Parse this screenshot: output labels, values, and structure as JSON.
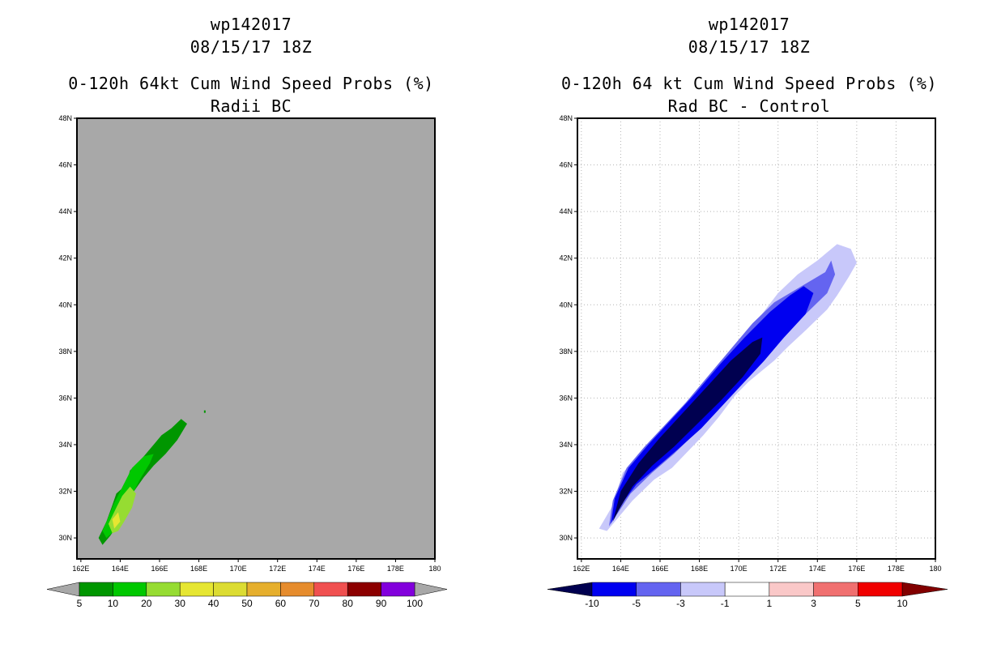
{
  "left": {
    "title1": "wp142017",
    "title2": "08/15/17 18Z",
    "title3": "0-120h 64kt Cum Wind Speed Probs (%)",
    "title4": "Radii BC"
  },
  "right": {
    "title1": "wp142017",
    "title2": "08/15/17 18Z",
    "title3": "0-120h 64 kt Cum Wind Speed Probs (%)",
    "title4": "Rad BC - Control"
  },
  "colors": {
    "left_background": "#a8a8a8",
    "green_dark": "#009600",
    "green": "#00c800",
    "green_light": "#96dc32",
    "yellow": "#e6e632",
    "navy": "#000050",
    "blue": "#0000f0",
    "blue_mid": "#6464f0",
    "blue_light": "#c8c8fa"
  },
  "chart_data": [
    {
      "type": "contour-map",
      "panel": "left",
      "title": "0-120h 64kt Cum Wind Speed Probs (%)",
      "subtitle": "Radii BC",
      "x_ticks": [
        "162E",
        "164E",
        "166E",
        "168E",
        "170E",
        "172E",
        "174E",
        "176E",
        "178E",
        "180"
      ],
      "y_ticks": [
        "30N",
        "32N",
        "34N",
        "36N",
        "38N",
        "40N",
        "42N",
        "44N",
        "46N",
        "48N"
      ],
      "xlim": [
        161.8,
        180
      ],
      "ylim": [
        29.1,
        48
      ],
      "grid": false,
      "legend_levels": [
        "5",
        "10",
        "20",
        "30",
        "40",
        "50",
        "60",
        "70",
        "80",
        "90",
        "100"
      ],
      "legend_colors": [
        "#009600",
        "#00c800",
        "#96dc32",
        "#e6e632",
        "#dcdc32",
        "#e6af2d",
        "#e68c2d",
        "#f05050",
        "#8c0000",
        "#8200dc"
      ],
      "contours": [
        {
          "level": 5,
          "color": "#009600",
          "points": [
            [
              163.1,
              29.7
            ],
            [
              162.9,
              30.0
            ],
            [
              163.3,
              30.7
            ],
            [
              163.6,
              31.4
            ],
            [
              163.8,
              31.9
            ],
            [
              164.2,
              32.2
            ],
            [
              164.4,
              32.6
            ],
            [
              164.5,
              32.9
            ],
            [
              164.9,
              33.2
            ],
            [
              165.4,
              33.7
            ],
            [
              165.8,
              34.1
            ],
            [
              166.1,
              34.4
            ],
            [
              166.6,
              34.7
            ],
            [
              167.1,
              35.1
            ],
            [
              167.4,
              34.9
            ],
            [
              166.9,
              34.2
            ],
            [
              166.3,
              33.6
            ],
            [
              165.7,
              33.1
            ],
            [
              165.2,
              32.6
            ],
            [
              164.7,
              32.0
            ],
            [
              164.3,
              31.3
            ],
            [
              163.9,
              30.6
            ],
            [
              163.5,
              30.1
            ]
          ]
        },
        {
          "level": 10,
          "color": "#00c800",
          "points": [
            [
              163.3,
              30.0
            ],
            [
              163.1,
              30.3
            ],
            [
              163.4,
              30.9
            ],
            [
              163.7,
              31.5
            ],
            [
              164.0,
              32.0
            ],
            [
              164.3,
              32.5
            ],
            [
              164.6,
              33.0
            ],
            [
              165.2,
              33.5
            ],
            [
              165.7,
              33.6
            ],
            [
              165.5,
              33.2
            ],
            [
              165.0,
              32.5
            ],
            [
              164.5,
              31.7
            ],
            [
              164.0,
              30.9
            ],
            [
              163.7,
              30.3
            ]
          ]
        },
        {
          "level": 20,
          "color": "#96dc32",
          "points": [
            [
              163.6,
              30.2
            ],
            [
              163.4,
              30.6
            ],
            [
              163.8,
              31.3
            ],
            [
              164.1,
              31.8
            ],
            [
              164.5,
              32.2
            ],
            [
              164.8,
              31.9
            ],
            [
              164.6,
              31.3
            ],
            [
              164.2,
              30.7
            ],
            [
              163.9,
              30.3
            ]
          ]
        },
        {
          "level": 30,
          "color": "#e6e632",
          "points": [
            [
              163.7,
              30.4
            ],
            [
              163.6,
              30.8
            ],
            [
              163.9,
              31.1
            ],
            [
              164.0,
              30.7
            ]
          ]
        }
      ],
      "annotation": "isolated speck near 168E 35N"
    },
    {
      "type": "contour-map",
      "panel": "right",
      "title": "0-120h 64 kt Cum Wind Speed Probs (%)",
      "subtitle": "Rad BC - Control",
      "x_ticks": [
        "162E",
        "164E",
        "166E",
        "168E",
        "170E",
        "172E",
        "174E",
        "176E",
        "178E",
        "180"
      ],
      "y_ticks": [
        "30N",
        "32N",
        "34N",
        "36N",
        "38N",
        "40N",
        "42N",
        "44N",
        "46N",
        "48N"
      ],
      "xlim": [
        161.8,
        180
      ],
      "ylim": [
        29.1,
        48
      ],
      "grid": true,
      "legend_levels": [
        "-10",
        "-5",
        "-3",
        "-1",
        "1",
        "3",
        "5",
        "10"
      ],
      "legend_colors": [
        "#000050",
        "#0000f0",
        "#6464f0",
        "#c8c8fa",
        "#ffffff",
        "#fac8c8",
        "#f07070",
        "#f00000",
        "#820000"
      ],
      "contours": [
        {
          "level": -1,
          "color": "#c8c8fa",
          "points": [
            [
              162.9,
              30.4
            ],
            [
              163.6,
              31.4
            ],
            [
              164.1,
              32.8
            ],
            [
              165.0,
              33.6
            ],
            [
              166.0,
              34.4
            ],
            [
              167.0,
              35.4
            ],
            [
              168.0,
              36.4
            ],
            [
              169.0,
              37.5
            ],
            [
              170.0,
              38.4
            ],
            [
              171.0,
              39.4
            ],
            [
              172.0,
              40.5
            ],
            [
              173.0,
              41.3
            ],
            [
              174.0,
              41.9
            ],
            [
              175.0,
              42.6
            ],
            [
              175.7,
              42.4
            ],
            [
              176.0,
              41.8
            ],
            [
              175.6,
              41.2
            ],
            [
              175.0,
              40.4
            ],
            [
              174.5,
              39.8
            ],
            [
              173.4,
              38.9
            ],
            [
              172.5,
              38.2
            ],
            [
              171.8,
              37.6
            ],
            [
              170.5,
              36.7
            ],
            [
              169.8,
              36.1
            ],
            [
              169.0,
              35.2
            ],
            [
              168.2,
              34.4
            ],
            [
              167.4,
              33.7
            ],
            [
              166.6,
              33.0
            ],
            [
              165.7,
              32.5
            ],
            [
              164.6,
              31.6
            ],
            [
              163.8,
              30.8
            ],
            [
              163.3,
              30.3
            ]
          ]
        },
        {
          "level": -3,
          "color": "#6464f0",
          "points": [
            [
              163.4,
              30.5
            ],
            [
              163.6,
              31.6
            ],
            [
              164.3,
              33.0
            ],
            [
              165.2,
              33.9
            ],
            [
              166.2,
              34.8
            ],
            [
              167.3,
              35.8
            ],
            [
              168.4,
              36.9
            ],
            [
              169.5,
              38.0
            ],
            [
              170.7,
              39.2
            ],
            [
              171.8,
              40.1
            ],
            [
              172.8,
              40.6
            ],
            [
              173.8,
              41.1
            ],
            [
              174.4,
              41.4
            ],
            [
              174.7,
              41.9
            ],
            [
              174.9,
              41.3
            ],
            [
              174.5,
              40.5
            ],
            [
              173.4,
              39.6
            ],
            [
              172.3,
              38.6
            ],
            [
              171.1,
              37.6
            ],
            [
              170.0,
              36.6
            ],
            [
              168.9,
              35.5
            ],
            [
              167.8,
              34.5
            ],
            [
              166.7,
              33.6
            ],
            [
              165.6,
              32.8
            ],
            [
              164.5,
              31.9
            ],
            [
              163.8,
              31.0
            ]
          ]
        },
        {
          "level": -5,
          "color": "#0000f0",
          "points": [
            [
              163.5,
              30.6
            ],
            [
              163.7,
              31.7
            ],
            [
              164.4,
              33.0
            ],
            [
              165.4,
              34.0
            ],
            [
              166.6,
              35.1
            ],
            [
              167.8,
              36.2
            ],
            [
              169.0,
              37.4
            ],
            [
              170.3,
              38.6
            ],
            [
              171.6,
              39.7
            ],
            [
              172.6,
              40.4
            ],
            [
              173.3,
              40.8
            ],
            [
              173.8,
              40.5
            ],
            [
              173.4,
              39.6
            ],
            [
              172.3,
              38.6
            ],
            [
              171.3,
              37.6
            ],
            [
              170.3,
              36.7
            ],
            [
              169.2,
              35.7
            ],
            [
              168.1,
              34.7
            ],
            [
              166.9,
              33.8
            ],
            [
              165.8,
              33.0
            ],
            [
              164.8,
              32.3
            ],
            [
              163.9,
              31.3
            ]
          ]
        },
        {
          "level": -10,
          "color": "#000050",
          "points": [
            [
              163.6,
              30.7
            ],
            [
              164.0,
              32.0
            ],
            [
              164.9,
              33.2
            ],
            [
              166.0,
              34.3
            ],
            [
              167.2,
              35.4
            ],
            [
              168.4,
              36.5
            ],
            [
              169.6,
              37.6
            ],
            [
              170.7,
              38.4
            ],
            [
              171.2,
              38.6
            ],
            [
              171.1,
              37.9
            ],
            [
              170.2,
              36.9
            ],
            [
              169.1,
              35.9
            ],
            [
              167.9,
              34.9
            ],
            [
              166.7,
              33.9
            ],
            [
              165.6,
              33.1
            ],
            [
              164.6,
              32.2
            ],
            [
              163.9,
              31.2
            ]
          ]
        }
      ]
    }
  ]
}
